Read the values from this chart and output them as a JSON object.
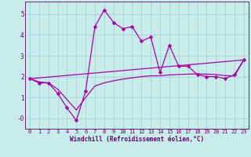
{
  "xlabel": "Windchill (Refroidissement éolien,°C)",
  "background_color": "#c8ecec",
  "grid_color": "#9ecfcf",
  "line_color": "#aa00aa",
  "x_ticks": [
    0,
    1,
    2,
    3,
    4,
    5,
    6,
    7,
    8,
    9,
    10,
    11,
    12,
    13,
    14,
    15,
    16,
    17,
    18,
    19,
    20,
    21,
    22,
    23
  ],
  "y_ticks": [
    0,
    1,
    2,
    3,
    4,
    5
  ],
  "y_tick_labels": [
    "-0",
    "1",
    "2",
    "3",
    "4",
    "5"
  ],
  "ylim": [
    -0.5,
    5.6
  ],
  "xlim": [
    -0.5,
    23.5
  ],
  "series1_x": [
    0,
    1,
    2,
    3,
    4,
    5,
    6,
    7,
    8,
    9,
    10,
    11,
    12,
    13,
    14,
    15,
    16,
    17,
    18,
    19,
    20,
    21,
    22,
    23
  ],
  "series1_y": [
    1.9,
    1.7,
    1.7,
    1.2,
    0.5,
    -0.1,
    1.3,
    4.4,
    5.2,
    4.6,
    4.3,
    4.4,
    3.7,
    3.9,
    2.2,
    3.5,
    2.5,
    2.5,
    2.1,
    2.0,
    2.0,
    1.9,
    2.1,
    2.8
  ],
  "series2_y": [
    1.9,
    1.75,
    1.7,
    1.4,
    0.9,
    0.4,
    1.0,
    1.55,
    1.7,
    1.8,
    1.88,
    1.94,
    2.0,
    2.04,
    2.04,
    2.08,
    2.1,
    2.12,
    2.13,
    2.12,
    2.1,
    2.05,
    2.03,
    2.8
  ],
  "series3_y": [
    1.9,
    2.8
  ],
  "series3_x": [
    0,
    23
  ],
  "marker_size": 2.5,
  "linewidth": 0.9,
  "tick_fontsize": 5.0,
  "xlabel_fontsize": 5.5
}
